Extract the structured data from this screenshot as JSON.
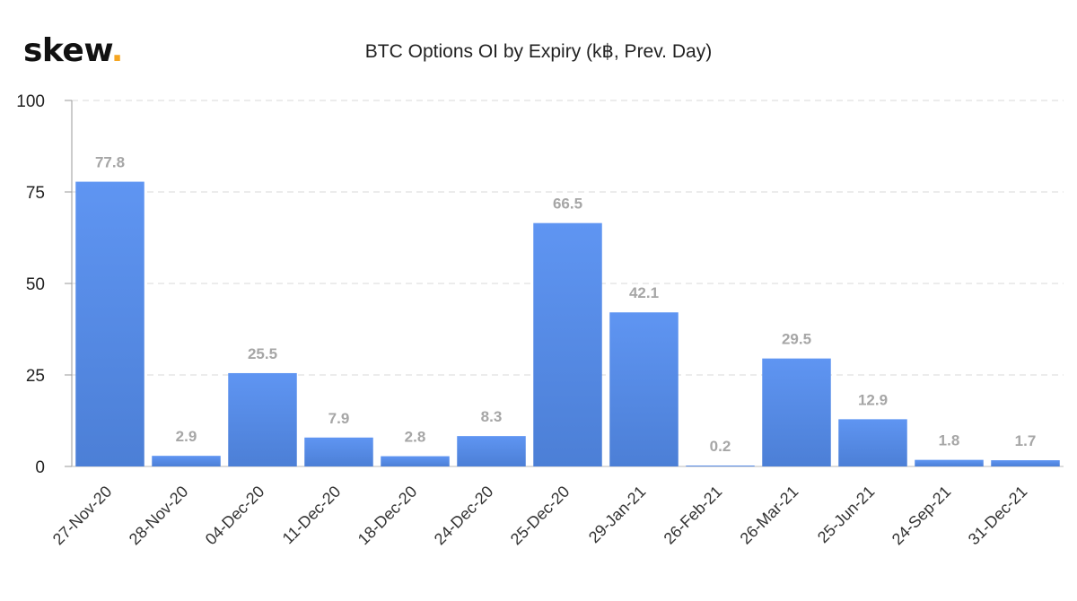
{
  "logo": {
    "text": "skew",
    "dot": "."
  },
  "chart_data": {
    "type": "bar",
    "title": "BTC Options OI by Expiry (k฿, Prev. Day)",
    "xlabel": "",
    "ylabel": "",
    "categories": [
      "27-Nov-20",
      "28-Nov-20",
      "04-Dec-20",
      "11-Dec-20",
      "18-Dec-20",
      "24-Dec-20",
      "25-Dec-20",
      "29-Jan-21",
      "26-Feb-21",
      "26-Mar-21",
      "25-Jun-21",
      "24-Sep-21",
      "31-Dec-21"
    ],
    "values": [
      77.8,
      2.9,
      25.5,
      7.9,
      2.8,
      8.3,
      66.5,
      42.1,
      0.2,
      29.5,
      12.9,
      1.8,
      1.7
    ],
    "value_labels": [
      "77.8",
      "2.9",
      "25.5",
      "7.9",
      "2.8",
      "8.3",
      "66.5",
      "42.1",
      "0.2",
      "29.5",
      "12.9",
      "1.8",
      "1.7"
    ],
    "ylim": [
      0,
      100
    ],
    "yticks": [
      0,
      25,
      50,
      75,
      100
    ],
    "ytick_labels": [
      "0",
      "25",
      "50",
      "75",
      "100"
    ],
    "grid": true,
    "legend": "none",
    "colors": {
      "bar_top": "#5f95f2",
      "bar_bottom": "#4c7fd6",
      "grid": "#d9d9d9",
      "value_label": "#a6a6a6"
    }
  }
}
